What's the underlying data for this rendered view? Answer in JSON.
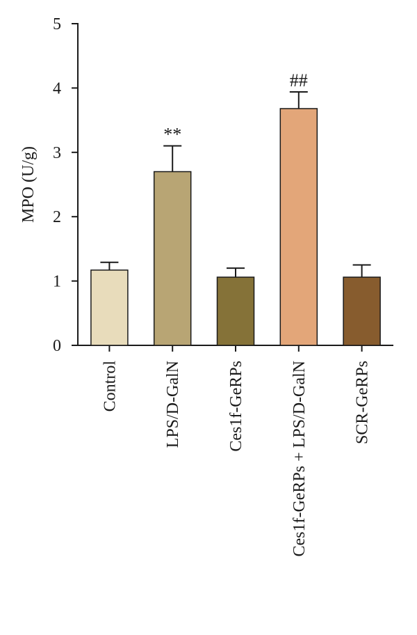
{
  "chart_data": {
    "type": "bar",
    "ylabel": "MPO (U/g)",
    "ylim": [
      0,
      5
    ],
    "yticks": [
      0,
      1,
      2,
      3,
      4,
      5
    ],
    "ytick_labels": [
      "0",
      "1",
      "2",
      "3",
      "4",
      "5"
    ],
    "grid": false,
    "categories": [
      "Control",
      "LPS/D-GalN",
      "Ces1f-GeRPs",
      "Ces1f-GeRPs + LPS/D-GalN",
      "SCR-GeRPs"
    ],
    "values": [
      1.17,
      2.7,
      1.06,
      3.68,
      1.06
    ],
    "errors": [
      0.12,
      0.4,
      0.14,
      0.26,
      0.19
    ],
    "annotations": [
      "",
      "**",
      "",
      "##",
      ""
    ],
    "colors": [
      "#e8dcbb",
      "#b8a574",
      "#857238",
      "#e3a679",
      "#875c2e"
    ]
  }
}
